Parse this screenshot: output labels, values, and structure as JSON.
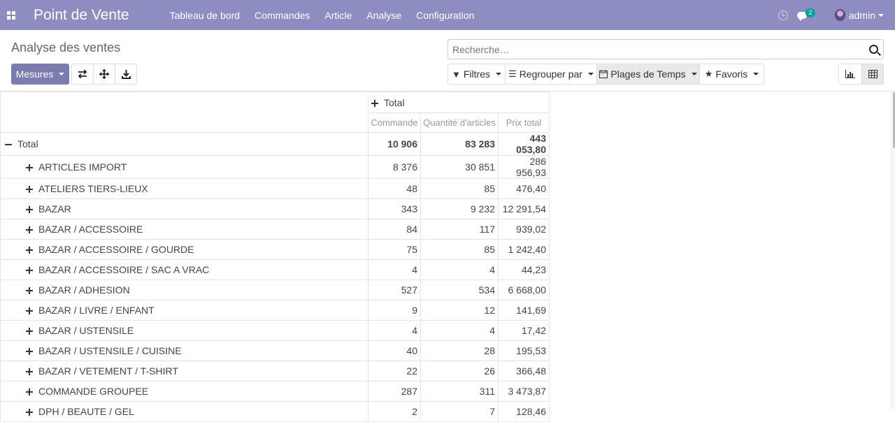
{
  "navbar": {
    "app_title": "Point de Vente",
    "menu": [
      "Tableau de bord",
      "Commandes",
      "Article",
      "Analyse",
      "Configuration"
    ],
    "chat_count": "2",
    "user": "admin",
    "bg_color": "#8f8cbf"
  },
  "control": {
    "title": "Analyse des ventes",
    "search_placeholder": "Recherche…",
    "measures_label": "Mesures",
    "filters_label": "Filtres",
    "group_label": "Regrouper par",
    "time_label": "Plages de Temps",
    "favorites_label": "Favoris"
  },
  "table": {
    "col_group": "Total",
    "measures": [
      "Commande",
      "Quantité d'articles",
      "Prix total"
    ],
    "total_label": "Total",
    "total_values": [
      "10 906",
      "83 283",
      "443 053,80"
    ],
    "rows": [
      {
        "label": "ARTICLES IMPORT",
        "values": [
          "8 376",
          "30 851",
          "286 956,93"
        ]
      },
      {
        "label": "ATELIERS TIERS-LIEUX",
        "values": [
          "48",
          "85",
          "476,40"
        ]
      },
      {
        "label": "BAZAR",
        "values": [
          "343",
          "9 232",
          "12 291,54"
        ]
      },
      {
        "label": "BAZAR / ACCESSOIRE",
        "values": [
          "84",
          "117",
          "939,02"
        ]
      },
      {
        "label": "BAZAR / ACCESSOIRE / GOURDE",
        "values": [
          "75",
          "85",
          "1 242,40"
        ]
      },
      {
        "label": "BAZAR / ACCESSOIRE / SAC A VRAC",
        "values": [
          "4",
          "4",
          "44,23"
        ]
      },
      {
        "label": "BAZAR / ADHESION",
        "values": [
          "527",
          "534",
          "6 668,00"
        ]
      },
      {
        "label": "BAZAR / LIVRE / ENFANT",
        "values": [
          "9",
          "12",
          "141,69"
        ]
      },
      {
        "label": "BAZAR / USTENSILE",
        "values": [
          "4",
          "4",
          "17,42"
        ]
      },
      {
        "label": "BAZAR / USTENSILE / CUISINE",
        "values": [
          "40",
          "28",
          "195,53"
        ]
      },
      {
        "label": "BAZAR / VETEMENT / T-SHIRT",
        "values": [
          "22",
          "26",
          "366,48"
        ]
      },
      {
        "label": "COMMANDE GROUPEE",
        "values": [
          "287",
          "311",
          "3 473,87"
        ]
      },
      {
        "label": "DPH / BEAUTE / GEL",
        "values": [
          "2",
          "7",
          "128,46"
        ]
      }
    ]
  }
}
